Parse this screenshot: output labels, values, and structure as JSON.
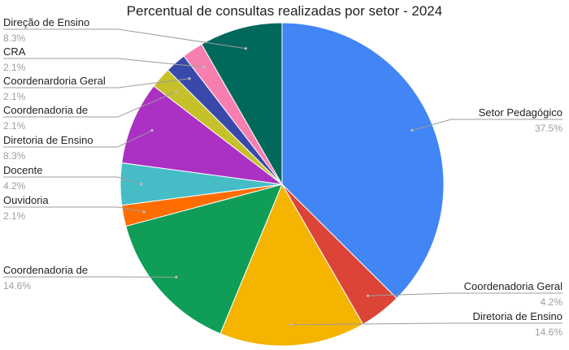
{
  "chart_data": {
    "type": "pie",
    "title": "Percentual de consultas realizadas por setor - 2024",
    "slices": [
      {
        "label": "Setor Pedagógico",
        "value": 37.5,
        "pct_label": "37.5%",
        "color": "#4285F4"
      },
      {
        "label": "Coordenadoria Geral",
        "value": 4.2,
        "pct_label": "4.2%",
        "color": "#DB4437"
      },
      {
        "label": "Diretoria de Ensino",
        "value": 14.6,
        "pct_label": "14.6%",
        "color": "#F4B400"
      },
      {
        "label": "Coordenadoria de",
        "value": 14.6,
        "pct_label": "14.6%",
        "color": "#0F9D58"
      },
      {
        "label": "Ouvidoria",
        "value": 2.1,
        "pct_label": "2.1%",
        "color": "#FF6D01"
      },
      {
        "label": "Docente",
        "value": 4.2,
        "pct_label": "4.2%",
        "color": "#46BDC6"
      },
      {
        "label": "Diretoria de Ensino",
        "value": 8.3,
        "pct_label": "8.3%",
        "color": "#AB30C4"
      },
      {
        "label": "Coordenadoria de",
        "value": 2.1,
        "pct_label": "2.1%",
        "color": "#C6C02A"
      },
      {
        "label": "Coordenardoria Geral",
        "value": 2.1,
        "pct_label": "2.1%",
        "color": "#3949AB"
      },
      {
        "label": "CRA",
        "value": 2.1,
        "pct_label": "2.1%",
        "color": "#F77FB0"
      },
      {
        "label": "Direção de Ensino",
        "value": 8.3,
        "pct_label": "8.3%",
        "color": "#00695C"
      }
    ],
    "legend": "none"
  }
}
